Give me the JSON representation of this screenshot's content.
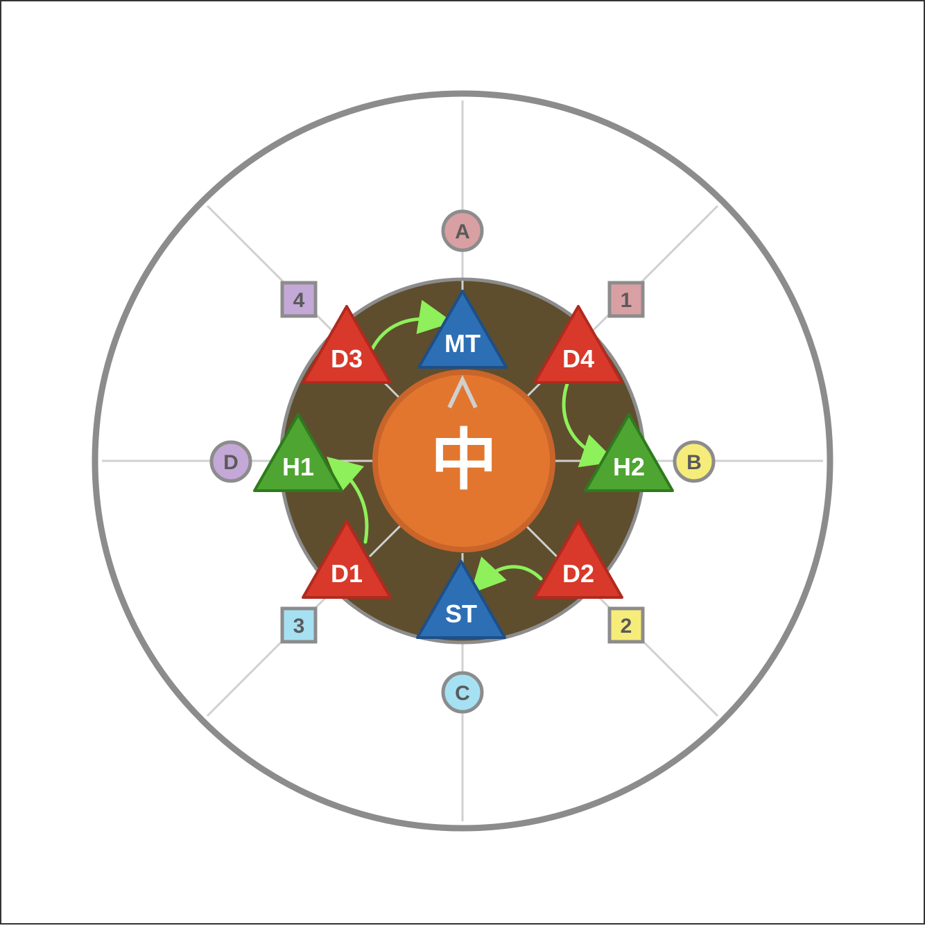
{
  "boss": {
    "label": "中"
  },
  "colors": {
    "arena_border": "#8c8c8c",
    "spoke": "#d0d0d0",
    "inner_floor": "#5e4e2e",
    "boss_fill": "#e2762e",
    "boss_stroke": "#c9652a",
    "tank": "#2d6fb5",
    "tank_stroke": "#1d4f88",
    "dps": "#d9392a",
    "dps_stroke": "#b02a1e",
    "healer": "#4ea532",
    "healer_stroke": "#2f7a1e",
    "arrow": "#8ef05a"
  },
  "waymarks": [
    {
      "id": "A",
      "label": "A",
      "shape": "circle",
      "color": "#d9a0a3"
    },
    {
      "id": "B",
      "label": "B",
      "shape": "circle",
      "color": "#f6ec7a"
    },
    {
      "id": "C",
      "label": "C",
      "shape": "circle",
      "color": "#a6e0f3"
    },
    {
      "id": "D",
      "label": "D",
      "shape": "circle",
      "color": "#c4a8d7"
    },
    {
      "id": "1",
      "label": "1",
      "shape": "square",
      "color": "#d9a0a3"
    },
    {
      "id": "2",
      "label": "2",
      "shape": "square",
      "color": "#f6ec7a"
    },
    {
      "id": "3",
      "label": "3",
      "shape": "square",
      "color": "#a6e0f3"
    },
    {
      "id": "4",
      "label": "4",
      "shape": "square",
      "color": "#c4a8d7"
    }
  ],
  "players": [
    {
      "id": "MT",
      "label": "MT",
      "role": "tank"
    },
    {
      "id": "ST",
      "label": "ST",
      "role": "tank"
    },
    {
      "id": "H1",
      "label": "H1",
      "role": "healer"
    },
    {
      "id": "H2",
      "label": "H2",
      "role": "healer"
    },
    {
      "id": "D1",
      "label": "D1",
      "role": "dps"
    },
    {
      "id": "D2",
      "label": "D2",
      "role": "dps"
    },
    {
      "id": "D3",
      "label": "D3",
      "role": "dps"
    },
    {
      "id": "D4",
      "label": "D4",
      "role": "dps"
    }
  ],
  "moves": [
    {
      "from": "D3",
      "to": "MT"
    },
    {
      "from": "D4",
      "to": "H2"
    },
    {
      "from": "D2",
      "to": "ST"
    },
    {
      "from": "D1",
      "to": "H1"
    }
  ]
}
